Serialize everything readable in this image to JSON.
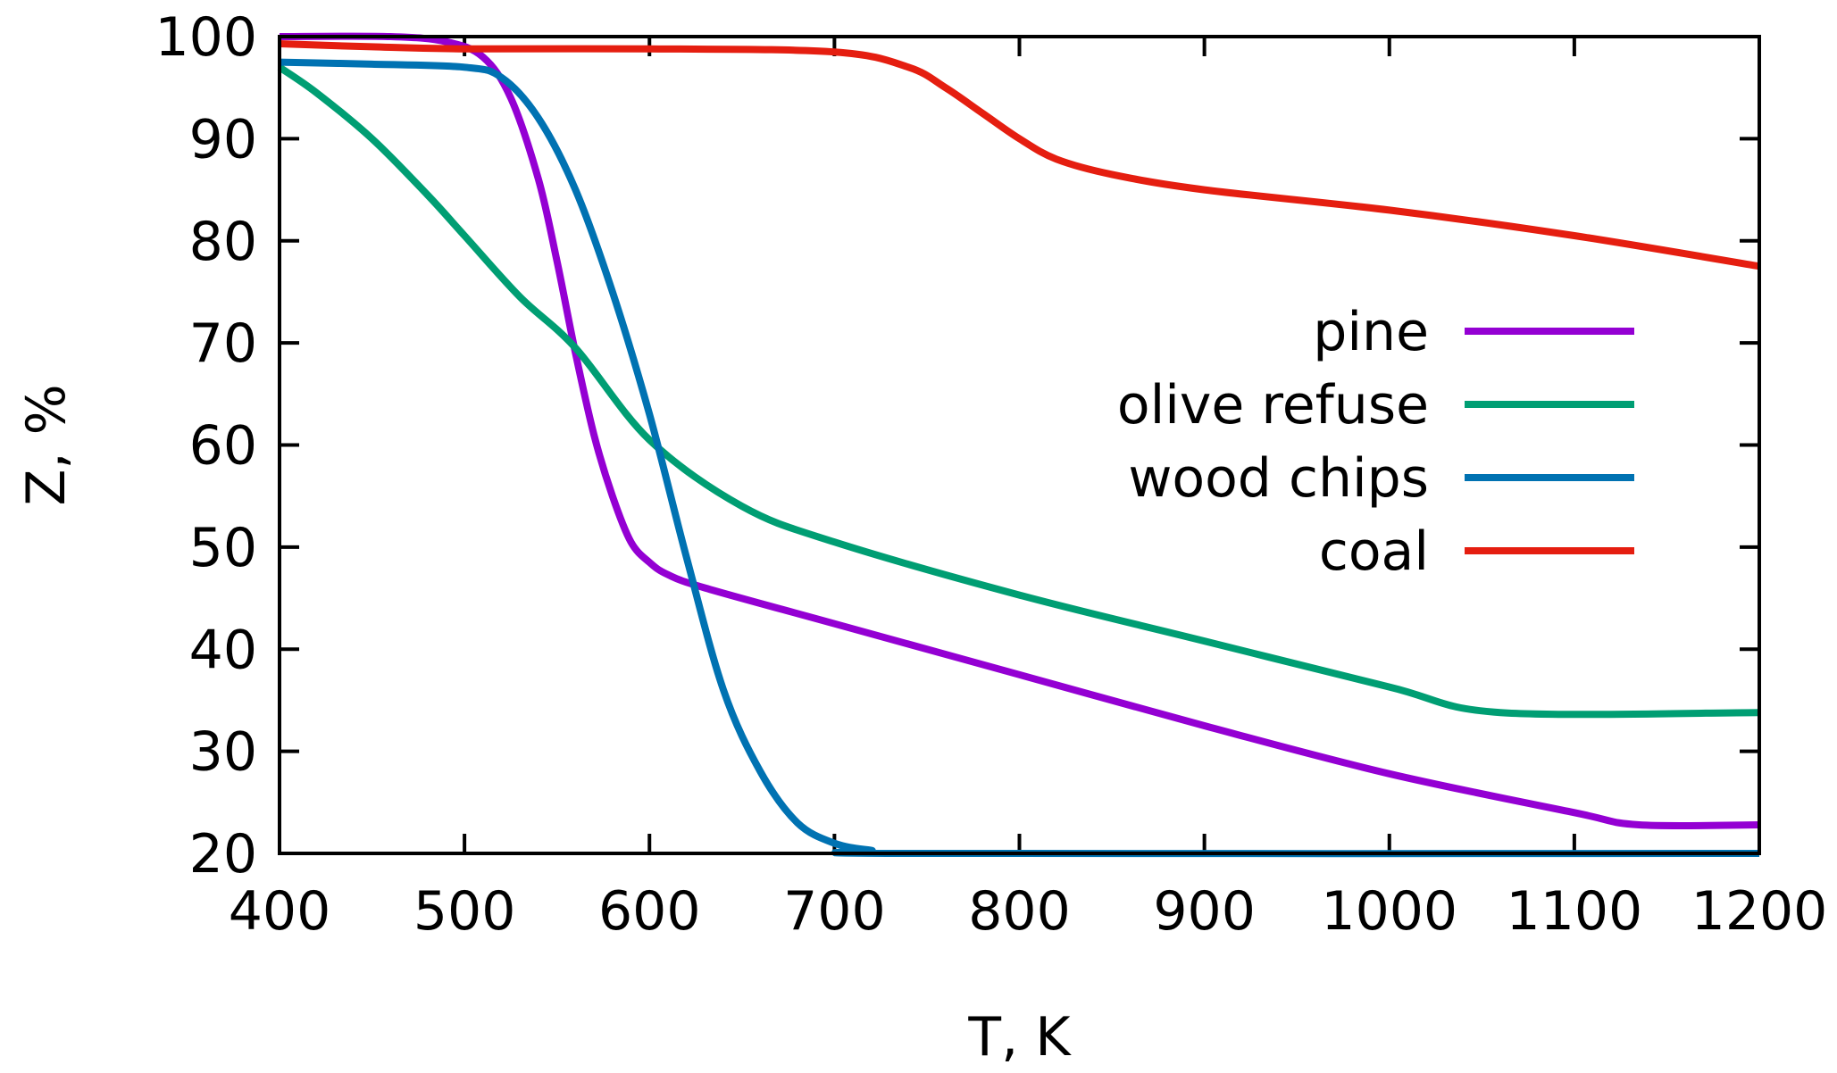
{
  "chart_data": {
    "type": "line",
    "title": "",
    "xlabel": "T, K",
    "ylabel": "Z, %",
    "xlim": [
      400,
      1200
    ],
    "ylim": [
      20,
      100
    ],
    "xticks": [
      400,
      500,
      600,
      700,
      800,
      900,
      1000,
      1100,
      1200
    ],
    "yticks": [
      20,
      30,
      40,
      50,
      60,
      70,
      80,
      90,
      100
    ],
    "grid": false,
    "legend_position": "right",
    "series": [
      {
        "name": "pine",
        "color": "#9400d3",
        "x": [
          400,
          460,
          490,
          510,
          525,
          540,
          550,
          560,
          570,
          580,
          590,
          600,
          610,
          630,
          700,
          800,
          900,
          1000,
          1100,
          1135,
          1200
        ],
        "y": [
          100,
          100,
          99.5,
          98,
          94,
          86,
          78,
          69,
          61,
          55,
          50.5,
          48.5,
          47.3,
          46,
          42.5,
          37.5,
          32.5,
          27.8,
          24,
          22.8,
          22.8
        ]
      },
      {
        "name": "olive refuse",
        "color": "#009e73",
        "x": [
          400,
          420,
          450,
          480,
          500,
          530,
          560,
          600,
          650,
          700,
          800,
          900,
          1000,
          1060,
          1200
        ],
        "y": [
          97,
          94.5,
          90,
          84.5,
          80.5,
          74.5,
          69.5,
          60.5,
          54,
          50.5,
          45.3,
          40.8,
          36.3,
          33.8,
          33.8
        ]
      },
      {
        "name": "wood chips",
        "color": "#0072b2",
        "x": [
          400,
          450,
          500,
          520,
          540,
          560,
          580,
          600,
          620,
          640,
          660,
          680,
          700,
          720,
          740,
          1200
        ],
        "y": [
          97.5,
          97.3,
          97,
          96,
          92,
          85,
          75,
          63,
          49,
          36,
          28,
          23,
          21,
          20.3,
          20,
          20
        ]
      },
      {
        "name": "coal",
        "color": "#e51e10",
        "x": [
          400,
          450,
          500,
          600,
          700,
          740,
          760,
          780,
          800,
          820,
          850,
          900,
          1000,
          1100,
          1200
        ],
        "y": [
          99.3,
          99,
          98.8,
          98.8,
          98.5,
          97,
          95,
          92.5,
          90,
          88,
          86.5,
          85,
          83,
          80.5,
          77.5
        ]
      }
    ]
  }
}
